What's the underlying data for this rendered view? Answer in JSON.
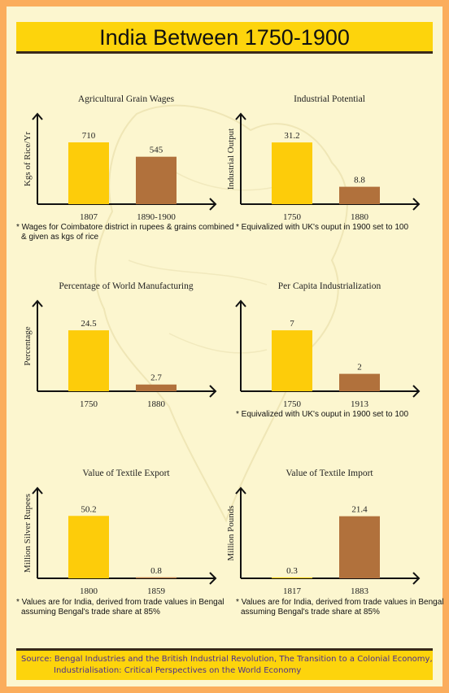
{
  "page": {
    "title": "India Between 1750-1900",
    "source_line1": "Source: Bengal Industries and the British Industrial Revolution, The Transition to a Colonial Economy,",
    "source_line2": "Industrialisation: Critical Perspectives on the World Economy"
  },
  "colors": {
    "bar_first": "#fdcc0a",
    "bar_second": "#b1713c",
    "axis": "#111111",
    "title_bar": "#fdd40c",
    "border": "#fbad5c"
  },
  "chart_data": [
    {
      "type": "bar",
      "title": "Agricultural Grain Wages",
      "ylabel": "Kgs of Rice/Yr",
      "categories": [
        "1807",
        "1890-1900"
      ],
      "values": [
        710,
        545
      ],
      "ylim": [
        0,
        1000
      ],
      "note": [
        "* Wages for Coimbatore district in rupees & grains combined",
        "& given as kgs of rice"
      ]
    },
    {
      "type": "bar",
      "title": "Industrial Potential",
      "ylabel": "Industrial Output",
      "categories": [
        "1750",
        "1880"
      ],
      "values": [
        31.2,
        8.8
      ],
      "ylim": [
        0,
        44
      ],
      "note": [
        "* Equivalized with UK's ouput in 1900 set to 100"
      ]
    },
    {
      "type": "bar",
      "title": "Percentage of World Manufacturing",
      "ylabel": "Percentage",
      "categories": [
        "1750",
        "1880"
      ],
      "values": [
        24.5,
        2.7
      ],
      "ylim": [
        0,
        35
      ],
      "note": []
    },
    {
      "type": "bar",
      "title": "Per Capita Industrialization",
      "ylabel": "",
      "categories": [
        "1750",
        "1913"
      ],
      "values": [
        7,
        2
      ],
      "ylim": [
        0,
        10
      ],
      "note": [
        "* Equivalized with UK's ouput in 1900 set to 100"
      ]
    },
    {
      "type": "bar",
      "title": "Value of Textile Export",
      "ylabel": "Million Silver Rupees",
      "categories": [
        "1800",
        "1859"
      ],
      "values": [
        50.2,
        0.8
      ],
      "ylim": [
        0,
        70
      ],
      "note": [
        "* Values are for India, derived from trade values in Bengal",
        "assuming Bengal's trade share at 85%"
      ]
    },
    {
      "type": "bar",
      "title": "Value of Textile Import",
      "ylabel": "Million Pounds",
      "categories": [
        "1817",
        "1883"
      ],
      "values": [
        0.3,
        21.4
      ],
      "ylim": [
        0,
        30
      ],
      "note": [
        "* Values are for India, derived from trade values in Bengal",
        "assuming Bengal's trade share at 85%"
      ]
    }
  ]
}
